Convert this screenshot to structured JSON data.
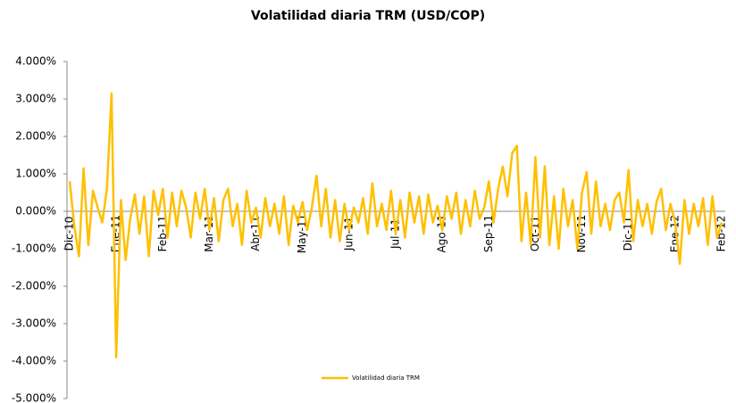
{
  "chart_data": {
    "type": "line",
    "title": "Volatilidad diaria TRM (USD/COP)",
    "categories": [
      "Dic-10",
      null,
      null,
      null,
      null,
      null,
      null,
      null,
      null,
      null,
      "Ene-11",
      null,
      null,
      null,
      null,
      null,
      null,
      null,
      null,
      null,
      "Feb-11",
      null,
      null,
      null,
      null,
      null,
      null,
      null,
      null,
      null,
      "Mar-11",
      null,
      null,
      null,
      null,
      null,
      null,
      null,
      null,
      null,
      "Abr-11",
      null,
      null,
      null,
      null,
      null,
      null,
      null,
      null,
      null,
      "May-11",
      null,
      null,
      null,
      null,
      null,
      null,
      null,
      null,
      null,
      "Jun-11",
      null,
      null,
      null,
      null,
      null,
      null,
      null,
      null,
      null,
      "Jul-11",
      null,
      null,
      null,
      null,
      null,
      null,
      null,
      null,
      null,
      "Ago-11",
      null,
      null,
      null,
      null,
      null,
      null,
      null,
      null,
      null,
      "Sep-11",
      null,
      null,
      null,
      null,
      null,
      null,
      null,
      null,
      null,
      "Oct-11",
      null,
      null,
      null,
      null,
      null,
      null,
      null,
      null,
      null,
      "Nov-11",
      null,
      null,
      null,
      null,
      null,
      null,
      null,
      null,
      null,
      "Dic-11",
      null,
      null,
      null,
      null,
      null,
      null,
      null,
      null,
      null,
      "Ene-12",
      null,
      null,
      null,
      null,
      null,
      null,
      null,
      null,
      null,
      "Feb-12"
    ],
    "series": [
      {
        "name": "Volatilidad diaria TRM",
        "color": "#ffc000",
        "values": [
          0.8,
          -0.4,
          -1.2,
          1.15,
          -0.9,
          0.55,
          0.1,
          -0.3,
          0.6,
          3.15,
          -3.9,
          0.3,
          -1.3,
          -0.2,
          0.45,
          -0.6,
          0.4,
          -1.2,
          0.55,
          -0.1,
          0.6,
          -0.7,
          0.5,
          -0.4,
          0.55,
          0.1,
          -0.7,
          0.5,
          -0.2,
          0.6,
          -0.5,
          0.35,
          -0.8,
          0.3,
          0.6,
          -0.4,
          0.2,
          -0.9,
          0.55,
          -0.3,
          0.1,
          -0.7,
          0.35,
          -0.4,
          0.2,
          -0.6,
          0.4,
          -0.9,
          0.15,
          -0.3,
          0.25,
          -0.5,
          0.1,
          0.95,
          -0.4,
          0.6,
          -0.7,
          0.3,
          -0.8,
          0.2,
          -0.5,
          0.1,
          -0.3,
          0.35,
          -0.6,
          0.75,
          -0.4,
          0.2,
          -0.5,
          0.55,
          -0.6,
          0.3,
          -0.7,
          0.5,
          -0.3,
          0.4,
          -0.6,
          0.45,
          -0.3,
          0.15,
          -0.5,
          0.4,
          -0.2,
          0.5,
          -0.6,
          0.3,
          -0.4,
          0.55,
          -0.2,
          0.1,
          0.8,
          -0.3,
          0.6,
          1.2,
          0.4,
          1.55,
          1.75,
          -0.8,
          0.5,
          -0.9,
          1.45,
          -0.7,
          1.2,
          -0.9,
          0.4,
          -1.0,
          0.6,
          -0.4,
          0.3,
          -1.0,
          0.5,
          1.05,
          -0.6,
          0.8,
          -0.4,
          0.2,
          -0.5,
          0.3,
          0.5,
          -0.3,
          1.1,
          -0.8,
          0.3,
          -0.4,
          0.2,
          -0.6,
          0.25,
          0.6,
          -0.5,
          0.2,
          -0.3,
          -1.4,
          0.3,
          -0.6,
          0.2,
          -0.4,
          0.35,
          -0.9,
          0.4,
          -0.7,
          -0.3
        ]
      }
    ],
    "ylim": [
      -5,
      4
    ],
    "yticks": [
      {
        "value": -5,
        "label": "-5.000%"
      },
      {
        "value": -4,
        "label": "-4.000%"
      },
      {
        "value": -3,
        "label": "-3.000%"
      },
      {
        "value": -2,
        "label": "-2.000%"
      },
      {
        "value": -1,
        "label": "-1.000%"
      },
      {
        "value": 0,
        "label": "0.000%"
      },
      {
        "value": 1,
        "label": "1.000%"
      },
      {
        "value": 2,
        "label": "2.000%"
      },
      {
        "value": 3,
        "label": "3.000%"
      },
      {
        "value": 4,
        "label": "4.000%"
      }
    ],
    "legend": "bottom"
  }
}
